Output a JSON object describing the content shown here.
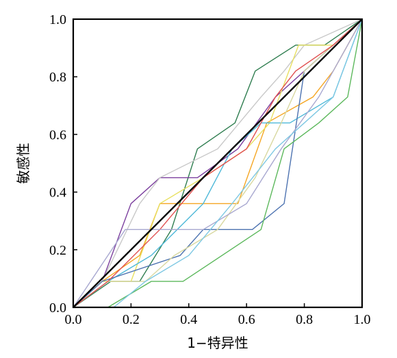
{
  "chart_data": {
    "type": "line",
    "xlabel": "1−特异性",
    "ylabel": "敏感性",
    "xlim": [
      0,
      1
    ],
    "ylim": [
      0,
      1
    ],
    "x_ticks": [
      "0.0",
      "0.2",
      "0.4",
      "0.6",
      "0.8",
      "1.0"
    ],
    "y_ticks": [
      "0.0",
      "0.2",
      "0.4",
      "0.6",
      "0.8",
      "1.0"
    ],
    "grid": false,
    "legend": "none",
    "series": [
      {
        "color": "#2e7d4f",
        "x": [
          0,
          0.13,
          0.23,
          0.34,
          0.43,
          0.56,
          0.63,
          0.77,
          0.87,
          1
        ],
        "y": [
          0,
          0.09,
          0.09,
          0.27,
          0.55,
          0.64,
          0.82,
          0.91,
          0.91,
          1
        ]
      },
      {
        "color": "#7b3f9e",
        "x": [
          0,
          0.1,
          0.2,
          0.3,
          0.43,
          0.57,
          0.7,
          0.8,
          1
        ],
        "y": [
          0,
          0.09,
          0.36,
          0.45,
          0.45,
          0.55,
          0.73,
          0.82,
          1
        ]
      },
      {
        "color": "#f5a623",
        "x": [
          0,
          0.1,
          0.23,
          0.3,
          0.43,
          0.57,
          0.67,
          0.83,
          0.9,
          1
        ],
        "y": [
          0,
          0.09,
          0.18,
          0.36,
          0.36,
          0.36,
          0.64,
          0.73,
          0.82,
          1
        ]
      },
      {
        "color": "#c8c8c8",
        "x": [
          0,
          0.1,
          0.23,
          0.3,
          0.5,
          0.65,
          0.73,
          0.8,
          1
        ],
        "y": [
          0,
          0.09,
          0.36,
          0.45,
          0.55,
          0.73,
          0.82,
          0.91,
          1
        ]
      },
      {
        "color": "#e8e060",
        "x": [
          0,
          0.1,
          0.2,
          0.3,
          0.45,
          0.6,
          0.68,
          0.78,
          0.9,
          1
        ],
        "y": [
          0,
          0.09,
          0.09,
          0.36,
          0.45,
          0.55,
          0.64,
          0.91,
          0.91,
          1
        ]
      },
      {
        "color": "#4db8d8",
        "x": [
          0,
          0.12,
          0.27,
          0.45,
          0.55,
          0.65,
          0.75,
          0.9,
          1
        ],
        "y": [
          0,
          0.09,
          0.18,
          0.36,
          0.55,
          0.64,
          0.64,
          0.73,
          1
        ]
      },
      {
        "color": "#4c72b0",
        "x": [
          0,
          0.1,
          0.37,
          0.45,
          0.62,
          0.73,
          0.8,
          0.9,
          1
        ],
        "y": [
          0,
          0.09,
          0.18,
          0.27,
          0.27,
          0.36,
          0.82,
          0.91,
          1
        ]
      },
      {
        "color": "#d8d8a0",
        "x": [
          0,
          0.12,
          0.25,
          0.35,
          0.5,
          0.63,
          0.72,
          0.8,
          1
        ],
        "y": [
          0,
          0.09,
          0.09,
          0.18,
          0.27,
          0.45,
          0.64,
          0.82,
          1
        ]
      },
      {
        "color": "#e05050",
        "x": [
          0,
          0.12,
          0.3,
          0.45,
          0.6,
          0.7,
          0.77,
          0.9,
          1
        ],
        "y": [
          0,
          0.09,
          0.27,
          0.45,
          0.55,
          0.73,
          0.82,
          0.91,
          1
        ]
      },
      {
        "color": "#a8a8d0",
        "x": [
          0,
          0.18,
          0.28,
          0.45,
          0.6,
          0.72,
          0.85,
          1
        ],
        "y": [
          0,
          0.27,
          0.27,
          0.27,
          0.36,
          0.55,
          0.73,
          1
        ]
      },
      {
        "color": "#5cb85c",
        "x": [
          0.12,
          0.27,
          0.38,
          0.65,
          0.73,
          0.85,
          0.95,
          1
        ],
        "y": [
          0,
          0.09,
          0.09,
          0.27,
          0.55,
          0.64,
          0.73,
          1
        ]
      },
      {
        "color": "#7ec8e3",
        "x": [
          0.14,
          0.25,
          0.4,
          0.55,
          0.7,
          0.8,
          0.9,
          1
        ],
        "y": [
          0,
          0.09,
          0.18,
          0.36,
          0.55,
          0.64,
          0.73,
          1
        ]
      },
      {
        "color": "#000000",
        "x": [
          0,
          1
        ],
        "y": [
          0,
          1
        ]
      }
    ]
  }
}
